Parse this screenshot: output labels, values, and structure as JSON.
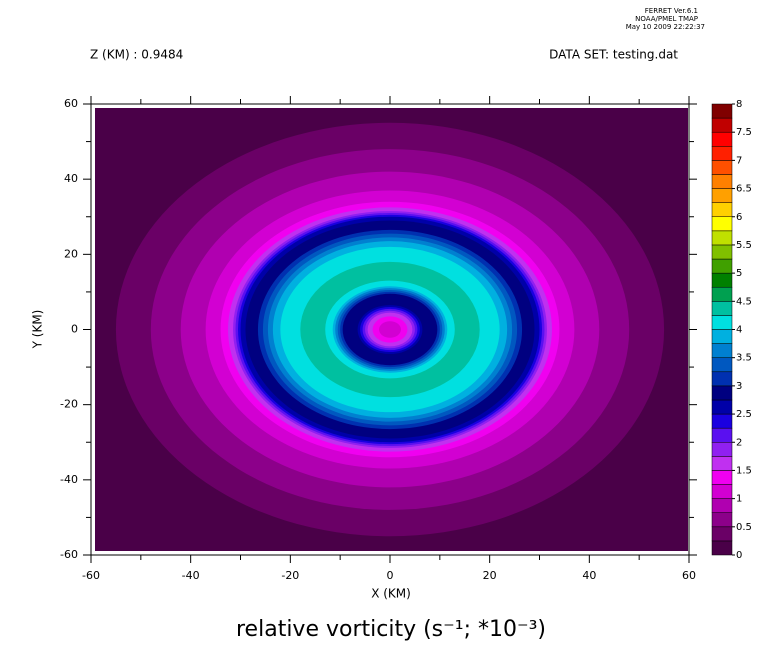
{
  "chart_data": {
    "type": "contour",
    "header": [
      "FERRET Ver.6.1",
      "NOAA/PMEL TMAP",
      "May 10 2009 22:22:37"
    ],
    "left_note": "Z (KM) : 0.9484",
    "right_note": "DATA SET: testing.dat",
    "title": "relative vorticity (s⁻¹; *10⁻³)",
    "x_label": "X (KM)",
    "y_label": "Y (KM)",
    "xlim": [
      -60,
      60
    ],
    "ylim": [
      -60,
      60
    ],
    "xticks": [
      -60,
      -40,
      -20,
      0,
      20,
      40,
      60
    ],
    "yticks": [
      -60,
      -40,
      -20,
      0,
      20,
      40,
      60
    ],
    "center": [
      0,
      0
    ],
    "contours": [
      {
        "r": 55,
        "level": 0.25
      },
      {
        "r": 48,
        "level": 0.5
      },
      {
        "r": 42,
        "level": 0.75
      },
      {
        "r": 37,
        "level": 1
      },
      {
        "r": 34,
        "level": 1.25
      },
      {
        "r": 32.5,
        "level": 1.5
      },
      {
        "r": 31.5,
        "level": 1.75
      },
      {
        "r": 31,
        "level": 2
      },
      {
        "r": 30.5,
        "level": 2.25
      },
      {
        "r": 30,
        "level": 2.5
      },
      {
        "r": 29,
        "level": 2.75
      },
      {
        "r": 26.5,
        "level": 3
      },
      {
        "r": 25.5,
        "level": 3.25
      },
      {
        "r": 24.5,
        "level": 3.5
      },
      {
        "r": 23.5,
        "level": 3.75
      },
      {
        "r": 22,
        "level": 4
      },
      {
        "r": 18,
        "level": 4.25
      },
      {
        "r": 13,
        "level": 4
      },
      {
        "r": 11.5,
        "level": 3.75
      },
      {
        "r": 11,
        "level": 3.5
      },
      {
        "r": 10.5,
        "level": 3.25
      },
      {
        "r": 10,
        "level": 3
      },
      {
        "r": 9.5,
        "level": 2.75
      },
      {
        "r": 6.5,
        "level": 2.5
      },
      {
        "r": 6,
        "level": 2.25
      },
      {
        "r": 5.5,
        "level": 2
      },
      {
        "r": 5,
        "level": 1.75
      },
      {
        "r": 4.5,
        "level": 1.5
      },
      {
        "r": 3.5,
        "level": 1.25
      },
      {
        "r": 2.2,
        "level": 1
      }
    ],
    "colorbar": {
      "levels": [
        0,
        0.25,
        0.5,
        0.75,
        1,
        1.25,
        1.5,
        1.75,
        2,
        2.25,
        2.5,
        2.75,
        3,
        3.25,
        3.5,
        3.75,
        4,
        4.25,
        4.5,
        4.75,
        5,
        5.25,
        5.5,
        5.75,
        6,
        6.25,
        6.5,
        6.75,
        7,
        7.25,
        7.5,
        7.75,
        8
      ],
      "colors": [
        "#4a0048",
        "#6a0066",
        "#8c008a",
        "#b000b0",
        "#d200d2",
        "#f000f0",
        "#c030f0",
        "#9020f0",
        "#5a10f0",
        "#1a00e0",
        "#0000a8",
        "#000080",
        "#0030b0",
        "#0058c0",
        "#0080d0",
        "#00b0e0",
        "#00e0e0",
        "#00c0a0",
        "#00a050",
        "#008000",
        "#40a000",
        "#80c000",
        "#c0e000",
        "#ffff00",
        "#ffd000",
        "#ffa000",
        "#ff8000",
        "#ff5000",
        "#ff2000",
        "#ff0000",
        "#c00000",
        "#800000"
      ],
      "ticks": [
        0,
        0.5,
        1,
        1.5,
        2,
        2.5,
        3,
        3.5,
        4,
        4.5,
        5,
        5.5,
        6,
        6.5,
        7,
        7.5,
        8
      ]
    }
  }
}
